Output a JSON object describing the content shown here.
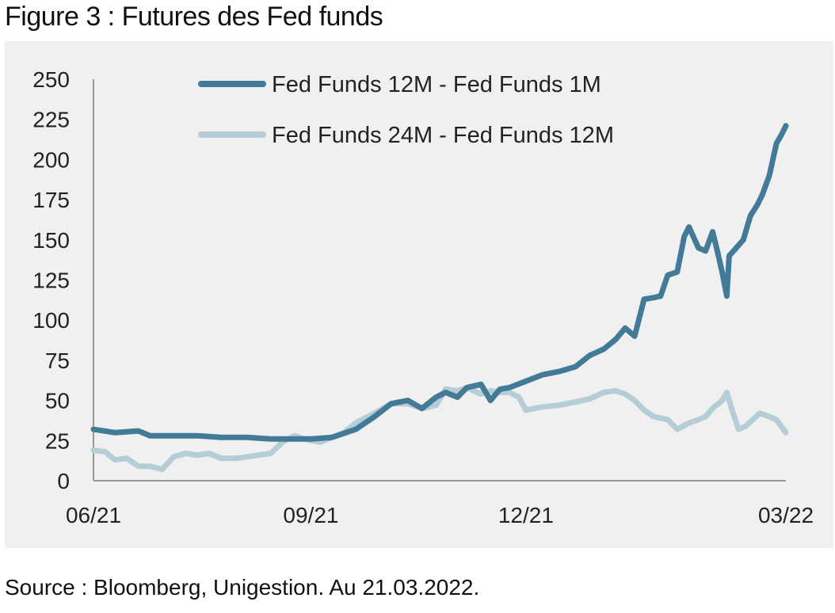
{
  "title": "Figure 3 : Futures des Fed funds",
  "source": "Source : Bloomberg, Unigestion. Au 21.03.2022.",
  "colors": {
    "series1": "#437a97",
    "series2": "#b5cdd6",
    "axis": "#999999",
    "background": "#f0f0f0"
  },
  "chart_data": {
    "type": "line",
    "title": "",
    "xlabel": "",
    "ylabel": "",
    "ylim": [
      0,
      250
    ],
    "yticks": [
      "0",
      "25",
      "50",
      "75",
      "100",
      "125",
      "150",
      "175",
      "200",
      "225",
      "250"
    ],
    "xticks": [
      "06/21",
      "09/21",
      "12/21",
      "03/22"
    ],
    "grid": false,
    "legend_position": "top",
    "series": [
      {
        "name": "Fed Funds 12M - Fed Funds 1M",
        "x": [
          "2021-06-01",
          "2021-06-10",
          "2021-06-20",
          "2021-06-25",
          "2021-07-05",
          "2021-07-15",
          "2021-07-25",
          "2021-08-05",
          "2021-08-15",
          "2021-08-25",
          "2021-09-01",
          "2021-09-10",
          "2021-09-20",
          "2021-09-28",
          "2021-10-05",
          "2021-10-12",
          "2021-10-18",
          "2021-10-24",
          "2021-10-28",
          "2021-11-02",
          "2021-11-06",
          "2021-11-12",
          "2021-11-16",
          "2021-11-20",
          "2021-11-24",
          "2021-12-01",
          "2021-12-08",
          "2021-12-15",
          "2021-12-22",
          "2021-12-28",
          "2022-01-03",
          "2022-01-08",
          "2022-01-12",
          "2022-01-16",
          "2022-01-20",
          "2022-01-24",
          "2022-01-27",
          "2022-01-30",
          "2022-02-03",
          "2022-02-06",
          "2022-02-08",
          "2022-02-12",
          "2022-02-15",
          "2022-02-18",
          "2022-02-20",
          "2022-02-22",
          "2022-02-24",
          "2022-02-25",
          "2022-02-28",
          "2022-03-03",
          "2022-03-06",
          "2022-03-09",
          "2022-03-11",
          "2022-03-14",
          "2022-03-17",
          "2022-03-19",
          "2022-03-21"
        ],
        "values": [
          32,
          30,
          31,
          28,
          28,
          28,
          27,
          27,
          26,
          26,
          26,
          27,
          32,
          40,
          48,
          50,
          45,
          52,
          55,
          52,
          58,
          60,
          50,
          57,
          58,
          62,
          66,
          68,
          71,
          78,
          82,
          88,
          95,
          90,
          113,
          114,
          115,
          128,
          130,
          152,
          158,
          145,
          143,
          155,
          143,
          130,
          115,
          140,
          145,
          150,
          165,
          172,
          178,
          190,
          210,
          215,
          221
        ]
      },
      {
        "name": "Fed Funds 24M - Fed Funds 12M",
        "x": [
          "2021-06-01",
          "2021-06-06",
          "2021-06-10",
          "2021-06-15",
          "2021-06-20",
          "2021-06-25",
          "2021-06-30",
          "2021-07-05",
          "2021-07-10",
          "2021-07-15",
          "2021-07-20",
          "2021-07-25",
          "2021-08-01",
          "2021-08-10",
          "2021-08-15",
          "2021-08-20",
          "2021-08-25",
          "2021-09-01",
          "2021-09-05",
          "2021-09-10",
          "2021-09-15",
          "2021-09-20",
          "2021-09-28",
          "2021-10-05",
          "2021-10-12",
          "2021-10-18",
          "2021-10-24",
          "2021-10-28",
          "2021-11-02",
          "2021-11-06",
          "2021-11-12",
          "2021-11-16",
          "2021-11-20",
          "2021-11-24",
          "2021-11-28",
          "2021-12-01",
          "2021-12-08",
          "2021-12-15",
          "2021-12-22",
          "2021-12-28",
          "2022-01-03",
          "2022-01-08",
          "2022-01-12",
          "2022-01-16",
          "2022-01-20",
          "2022-01-24",
          "2022-01-30",
          "2022-02-03",
          "2022-02-08",
          "2022-02-12",
          "2022-02-15",
          "2022-02-18",
          "2022-02-22",
          "2022-02-24",
          "2022-02-26",
          "2022-03-01",
          "2022-03-04",
          "2022-03-07",
          "2022-03-10",
          "2022-03-14",
          "2022-03-17",
          "2022-03-21"
        ],
        "values": [
          19,
          18,
          13,
          14,
          9,
          9,
          7,
          15,
          17,
          16,
          17,
          14,
          14,
          16,
          17,
          24,
          28,
          25,
          24,
          27,
          30,
          36,
          42,
          48,
          48,
          45,
          47,
          57,
          56,
          58,
          54,
          56,
          55,
          55,
          52,
          44,
          46,
          47,
          49,
          51,
          55,
          56,
          54,
          50,
          44,
          40,
          38,
          32,
          36,
          38,
          40,
          45,
          50,
          55,
          45,
          32,
          34,
          38,
          42,
          40,
          38,
          30
        ]
      }
    ]
  }
}
